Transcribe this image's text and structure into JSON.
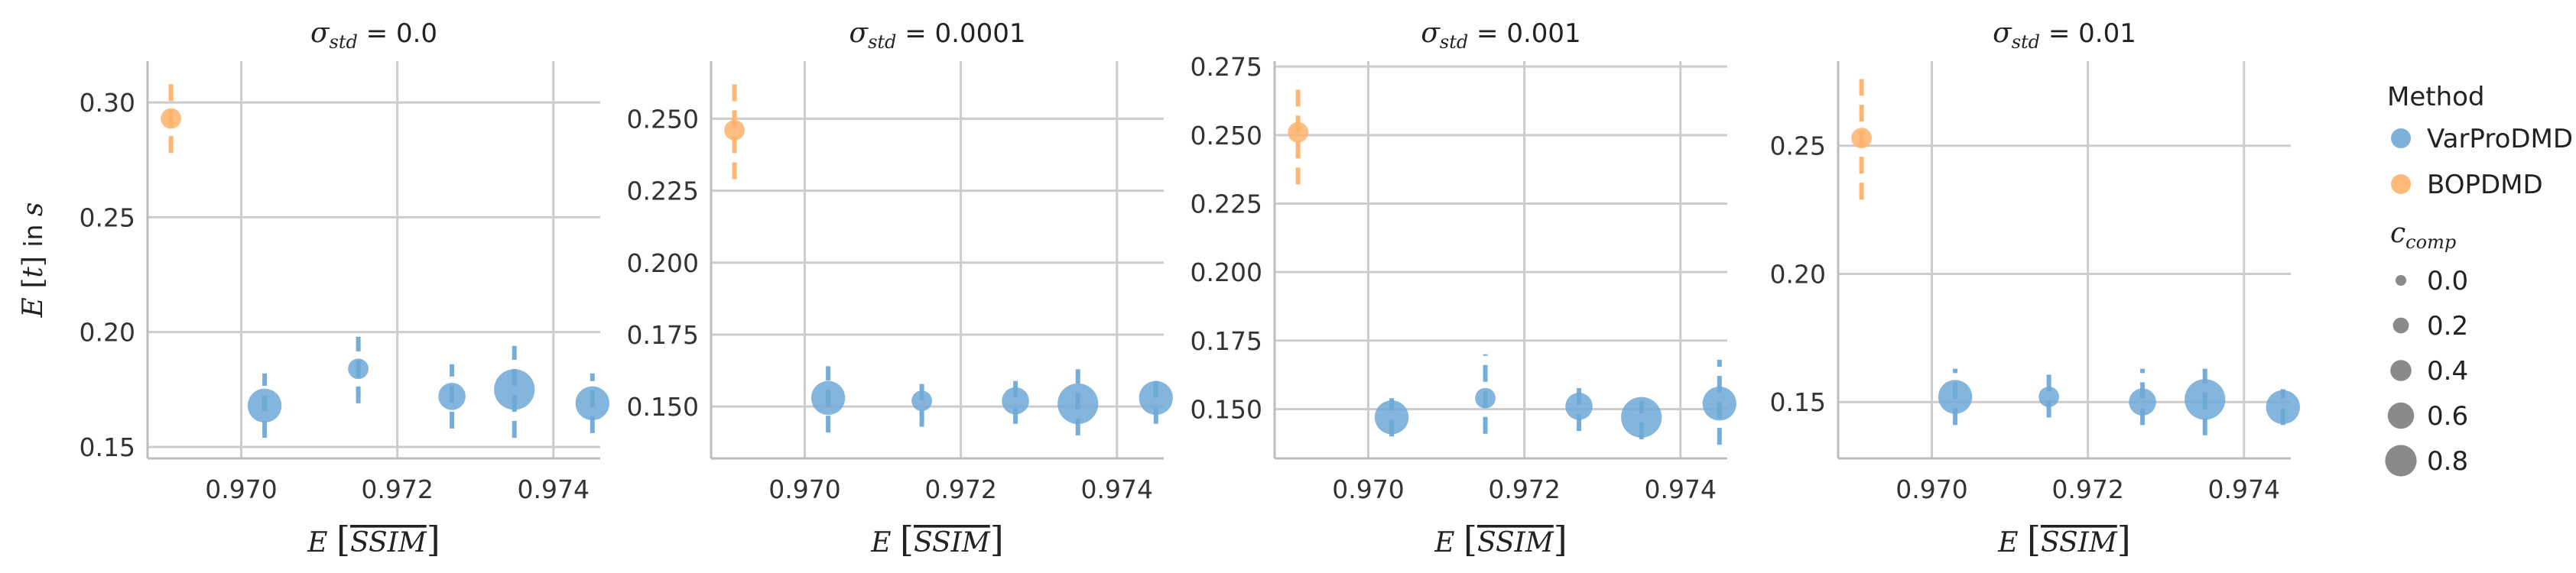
{
  "chart_data": [
    {
      "type": "scatter",
      "title": "σ_std = 0.0",
      "xlabel": "E[SSIM]",
      "ylabel": "E[t] in s",
      "xlim": [
        0.9688,
        0.9746
      ],
      "ylim": [
        0.145,
        0.318
      ],
      "xticks": [
        0.97,
        0.972,
        0.974
      ],
      "yticks": [
        0.15,
        0.2,
        0.25,
        0.3
      ],
      "grid": true,
      "series": [
        {
          "name": "VarProDMD",
          "points": [
            {
              "x": 0.9703,
              "y": 0.168,
              "err": [
                0.154,
                0.182
              ],
              "c_comp": 0.6
            },
            {
              "x": 0.9715,
              "y": 0.184,
              "err": [
                0.169,
                0.198
              ],
              "c_comp": 0.2
            },
            {
              "x": 0.9727,
              "y": 0.172,
              "err": [
                0.158,
                0.186
              ],
              "c_comp": 0.4
            },
            {
              "x": 0.9735,
              "y": 0.175,
              "err": [
                0.154,
                0.194
              ],
              "c_comp": 0.8
            },
            {
              "x": 0.9745,
              "y": 0.169,
              "err": [
                0.156,
                0.182
              ],
              "c_comp": 0.6
            }
          ]
        },
        {
          "name": "BOPDMD",
          "points": [
            {
              "x": 0.9691,
              "y": 0.293,
              "err": [
                0.278,
                0.308
              ],
              "c_comp": 0.2
            }
          ]
        }
      ]
    },
    {
      "type": "scatter",
      "title": "σ_std = 0.0001",
      "xlabel": "E[SSIM]",
      "ylabel": "",
      "xlim": [
        0.9688,
        0.9746
      ],
      "ylim": [
        0.132,
        0.27
      ],
      "xticks": [
        0.97,
        0.972,
        0.974
      ],
      "yticks": [
        0.15,
        0.175,
        0.2,
        0.225,
        0.25
      ],
      "grid": true,
      "series": [
        {
          "name": "VarProDMD",
          "points": [
            {
              "x": 0.9703,
              "y": 0.153,
              "err": [
                0.141,
                0.164
              ],
              "c_comp": 0.6
            },
            {
              "x": 0.9715,
              "y": 0.152,
              "err": [
                0.143,
                0.161
              ],
              "c_comp": 0.2
            },
            {
              "x": 0.9727,
              "y": 0.152,
              "err": [
                0.144,
                0.161
              ],
              "c_comp": 0.4
            },
            {
              "x": 0.9735,
              "y": 0.151,
              "err": [
                0.14,
                0.163
              ],
              "c_comp": 0.8
            },
            {
              "x": 0.9745,
              "y": 0.153,
              "err": [
                0.144,
                0.162
              ],
              "c_comp": 0.6
            }
          ]
        },
        {
          "name": "BOPDMD",
          "points": [
            {
              "x": 0.9691,
              "y": 0.246,
              "err": [
                0.229,
                0.264
              ],
              "c_comp": 0.2
            }
          ]
        }
      ]
    },
    {
      "type": "scatter",
      "title": "σ_std = 0.001",
      "xlabel": "E[SSIM]",
      "ylabel": "",
      "xlim": [
        0.9688,
        0.9746
      ],
      "ylim": [
        0.132,
        0.277
      ],
      "xticks": [
        0.97,
        0.972,
        0.974
      ],
      "yticks": [
        0.15,
        0.175,
        0.2,
        0.225,
        0.25,
        0.275
      ],
      "grid": true,
      "series": [
        {
          "name": "VarProDMD",
          "points": [
            {
              "x": 0.9703,
              "y": 0.147,
              "err": [
                0.14,
                0.154
              ],
              "c_comp": 0.6
            },
            {
              "x": 0.9715,
              "y": 0.154,
              "err": [
                0.141,
                0.17
              ],
              "c_comp": 0.2
            },
            {
              "x": 0.9727,
              "y": 0.151,
              "err": [
                0.142,
                0.161
              ],
              "c_comp": 0.4
            },
            {
              "x": 0.9735,
              "y": 0.147,
              "err": [
                0.139,
                0.153
              ],
              "c_comp": 0.8
            },
            {
              "x": 0.9745,
              "y": 0.152,
              "err": [
                0.137,
                0.168
              ],
              "c_comp": 0.6
            }
          ]
        },
        {
          "name": "BOPDMD",
          "points": [
            {
              "x": 0.9691,
              "y": 0.251,
              "err": [
                0.232,
                0.27
              ],
              "c_comp": 0.2
            }
          ]
        }
      ]
    },
    {
      "type": "scatter",
      "title": "σ_std = 0.01",
      "xlabel": "E[SSIM]",
      "ylabel": "",
      "xlim": [
        0.9688,
        0.9746
      ],
      "ylim": [
        0.128,
        0.283
      ],
      "xticks": [
        0.97,
        0.972,
        0.974
      ],
      "yticks": [
        0.15,
        0.2,
        0.25
      ],
      "grid": true,
      "series": [
        {
          "name": "VarProDMD",
          "points": [
            {
              "x": 0.9703,
              "y": 0.152,
              "err": [
                0.141,
                0.163
              ],
              "c_comp": 0.6
            },
            {
              "x": 0.9715,
              "y": 0.152,
              "err": [
                0.144,
                0.162
              ],
              "c_comp": 0.2
            },
            {
              "x": 0.9727,
              "y": 0.15,
              "err": [
                0.141,
                0.163
              ],
              "c_comp": 0.4
            },
            {
              "x": 0.9735,
              "y": 0.151,
              "err": [
                0.137,
                0.163
              ],
              "c_comp": 0.8
            },
            {
              "x": 0.9745,
              "y": 0.148,
              "err": [
                0.141,
                0.155
              ],
              "c_comp": 0.6
            }
          ]
        },
        {
          "name": "BOPDMD",
          "points": [
            {
              "x": 0.9691,
              "y": 0.253,
              "err": [
                0.229,
                0.276
              ],
              "c_comp": 0.2
            }
          ]
        }
      ]
    }
  ],
  "legend": {
    "placement": "right",
    "method_title": "Method",
    "methods": [
      {
        "name": "VarProDMD",
        "color": "#6fa8d6"
      },
      {
        "name": "BOPDMD",
        "color": "#ffb26b"
      }
    ],
    "size_title": "c_comp",
    "sizes": [
      "0.0",
      "0.2",
      "0.4",
      "0.6",
      "0.8"
    ]
  },
  "colors": {
    "VarProDMD": "#6fa8d6",
    "BOPDMD": "#ffb26b",
    "grid": "#cccccc",
    "spine": "#bdbdbd",
    "size_marker": "#8a8a8a"
  }
}
